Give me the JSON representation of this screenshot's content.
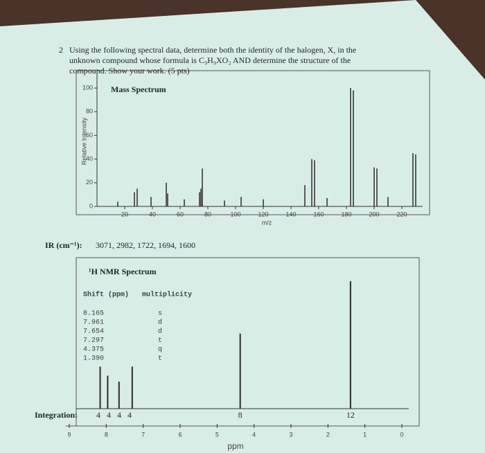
{
  "question": {
    "number": "2",
    "lines": [
      "Using the following spectral data, determine both the identity of the halogen, X, in the",
      "unknown compound whose formula is C₉H₉XO₂ AND determine the structure of the",
      "compound. Show your work. (5 pts)"
    ]
  },
  "ir": {
    "label": "IR (cm⁻¹):",
    "values": "3071, 2982, 1722, 1694, 1600"
  },
  "chart_data": [
    {
      "type": "bar",
      "title": "Mass Spectrum",
      "ylabel": "Relative Intensity",
      "xlabel": "m/z",
      "x": [
        15,
        27,
        29,
        39,
        50,
        51,
        63,
        74,
        75,
        76,
        92,
        104,
        120,
        150,
        155,
        157,
        166,
        183,
        185,
        200,
        202,
        210,
        228,
        230
      ],
      "values": [
        4,
        12,
        15,
        8,
        20,
        11,
        6,
        12,
        15,
        32,
        5,
        8,
        6,
        18,
        40,
        39,
        7,
        100,
        98,
        33,
        32,
        8,
        45,
        44
      ],
      "xlim": [
        0,
        230
      ],
      "ylim": [
        0,
        110
      ],
      "xticks": [
        20,
        40,
        60,
        80,
        100,
        120,
        140,
        160,
        180,
        200,
        220
      ],
      "yticks": [
        0,
        20,
        40,
        60,
        80,
        100
      ],
      "color": "#2a2a2a"
    },
    {
      "type": "spectrum",
      "title": "¹H NMR Spectrum",
      "xlabel": "ppm",
      "table_headers": [
        "Shift (ppm)",
        "multiplicity"
      ],
      "signals": [
        {
          "shift": {
            "value": 8.165,
            "label": "8.165"
          },
          "multiplicity": "s",
          "height": 28
        },
        {
          "shift": {
            "value": 7.961,
            "label": "7.961"
          },
          "multiplicity": "d",
          "height": 22
        },
        {
          "shift": {
            "value": 7.654,
            "label": "7.654"
          },
          "multiplicity": "d",
          "height": 18
        },
        {
          "shift": {
            "value": 7.297,
            "label": "7.297"
          },
          "multiplicity": "t",
          "height": 28
        },
        {
          "shift": {
            "value": 4.375,
            "label": "4.375"
          },
          "multiplicity": "q",
          "height": 50
        },
        {
          "shift": {
            "value": 1.39,
            "label": "1.390"
          },
          "multiplicity": "t",
          "height": 85
        }
      ],
      "integration_label": "Integration:",
      "integration": [
        4,
        4,
        4,
        4,
        8,
        12
      ],
      "xlim": [
        9,
        0
      ],
      "ylim": [
        0,
        90
      ],
      "xticks": [
        9,
        8,
        7,
        6,
        5,
        4,
        3,
        2,
        1,
        0
      ],
      "color": "#2a2a2a"
    }
  ]
}
